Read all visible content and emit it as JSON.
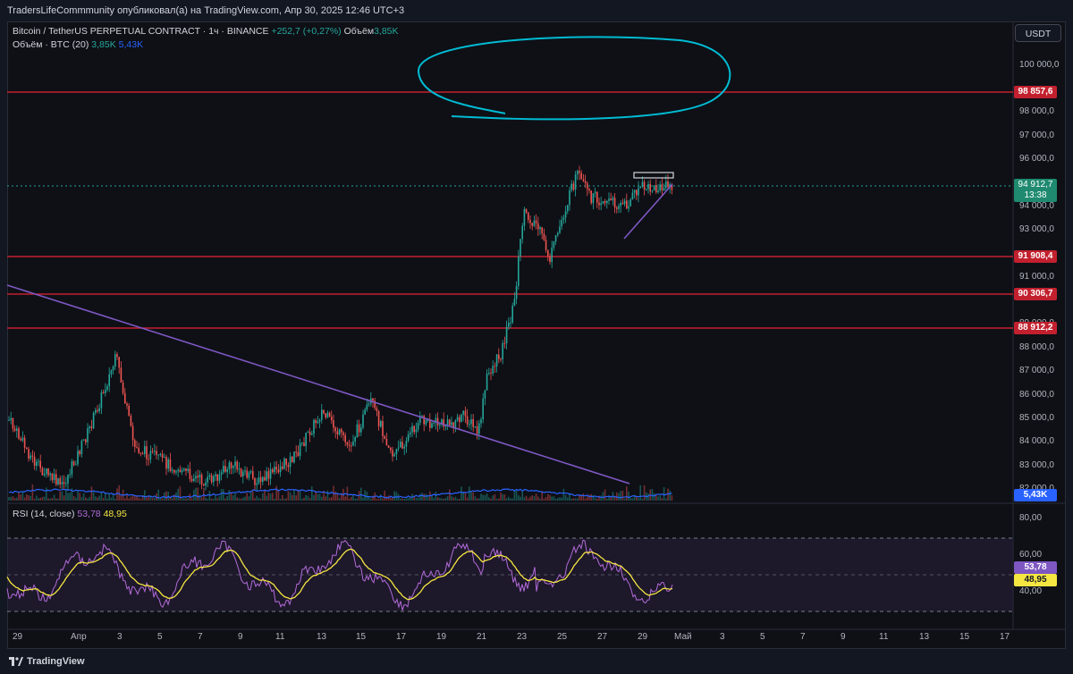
{
  "header": {
    "published": "TradersLifeCommmunity опубликовал(а) на TradingView.com, Апр 30, 2025 12:46 UTC+3"
  },
  "legend": {
    "symbol": "Bitcoin / TetherUS PERPETUAL CONTRACT · 1ч · BINANCE",
    "change": "+252,7 (+0,27%)",
    "volume_label": "Объём",
    "volume_value": "3,85K",
    "volume_ma_label": "Объём · BTC (20)",
    "volume_ma_1": "3,85K",
    "volume_ma_2": "5,43K",
    "rsi_label": "RSI (14, close)",
    "rsi_1": "53,78",
    "rsi_2": "48,95"
  },
  "currency_button": "USDT",
  "price_axis": {
    "ticks": [
      "100 000,0",
      "98 000,0",
      "97 000,0",
      "96 000,0",
      "94 000,0",
      "93 000,0",
      "91 000,0",
      "89 000,0",
      "88 000,0",
      "87 000,0",
      "86 000,0",
      "85 000,0",
      "84 000,0",
      "83 000,0",
      "82 000,0"
    ],
    "levels": [
      "98 857,6",
      "91 908,4",
      "90 306,7",
      "88 912,2"
    ],
    "current_price": "94 912,7",
    "countdown": "13:38",
    "volume_label": "5,43K"
  },
  "rsi_axis": {
    "ticks": [
      "80,00",
      "60,00",
      "40,00"
    ],
    "rsi_value": "53,78",
    "rsi_ma_value": "48,95"
  },
  "time_axis": [
    "29",
    "Апр",
    "3",
    "5",
    "7",
    "9",
    "11",
    "13",
    "15",
    "17",
    "19",
    "21",
    "23",
    "25",
    "27",
    "29",
    "Май",
    "3",
    "5",
    "7",
    "9",
    "11",
    "13",
    "15",
    "17"
  ],
  "footer": {
    "brand": "TradingView"
  },
  "colors": {
    "bg": "#0e1016",
    "up": "#26a69a",
    "down": "#ef5350",
    "level": "#c2202e",
    "trendline": "#7e57c2",
    "annotation": "#00bcd4",
    "rsi": "#b36bda",
    "rsi_ma": "#f5e642",
    "volume_ma": "#2962ff"
  },
  "icons": {
    "brand": "tradingview-logo-icon"
  }
}
